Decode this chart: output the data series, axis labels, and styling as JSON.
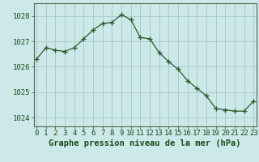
{
  "x": [
    0,
    1,
    2,
    3,
    4,
    5,
    6,
    7,
    8,
    9,
    10,
    11,
    12,
    13,
    14,
    15,
    16,
    17,
    18,
    19,
    20,
    21,
    22,
    23
  ],
  "y": [
    1026.3,
    1026.75,
    1026.65,
    1026.6,
    1026.75,
    1027.1,
    1027.45,
    1027.7,
    1027.75,
    1028.05,
    1027.85,
    1027.15,
    1027.1,
    1026.55,
    1026.2,
    1025.9,
    1025.45,
    1025.15,
    1024.85,
    1024.35,
    1024.3,
    1024.25,
    1024.25,
    1024.65
  ],
  "line_color": "#2d5a2d",
  "marker": "P",
  "marker_size": 2.5,
  "bg_color": "#cce8e8",
  "grid_color": "#aacccc",
  "xlabel": "Graphe pression niveau de la mer (hPa)",
  "xlabel_fontsize": 7.5,
  "tick_label_fontsize": 6.5,
  "ytick_labels": [
    "1024",
    "1025",
    "1026",
    "1027",
    "1028"
  ],
  "ylim": [
    1023.65,
    1028.5
  ],
  "xlim": [
    -0.3,
    23.3
  ],
  "xtick_labels": [
    "0",
    "1",
    "2",
    "3",
    "4",
    "5",
    "6",
    "7",
    "8",
    "9",
    "10",
    "11",
    "12",
    "13",
    "14",
    "15",
    "16",
    "17",
    "18",
    "19",
    "20",
    "21",
    "22",
    "23"
  ],
  "title_color": "#1a4a1a",
  "spine_color": "#556655"
}
